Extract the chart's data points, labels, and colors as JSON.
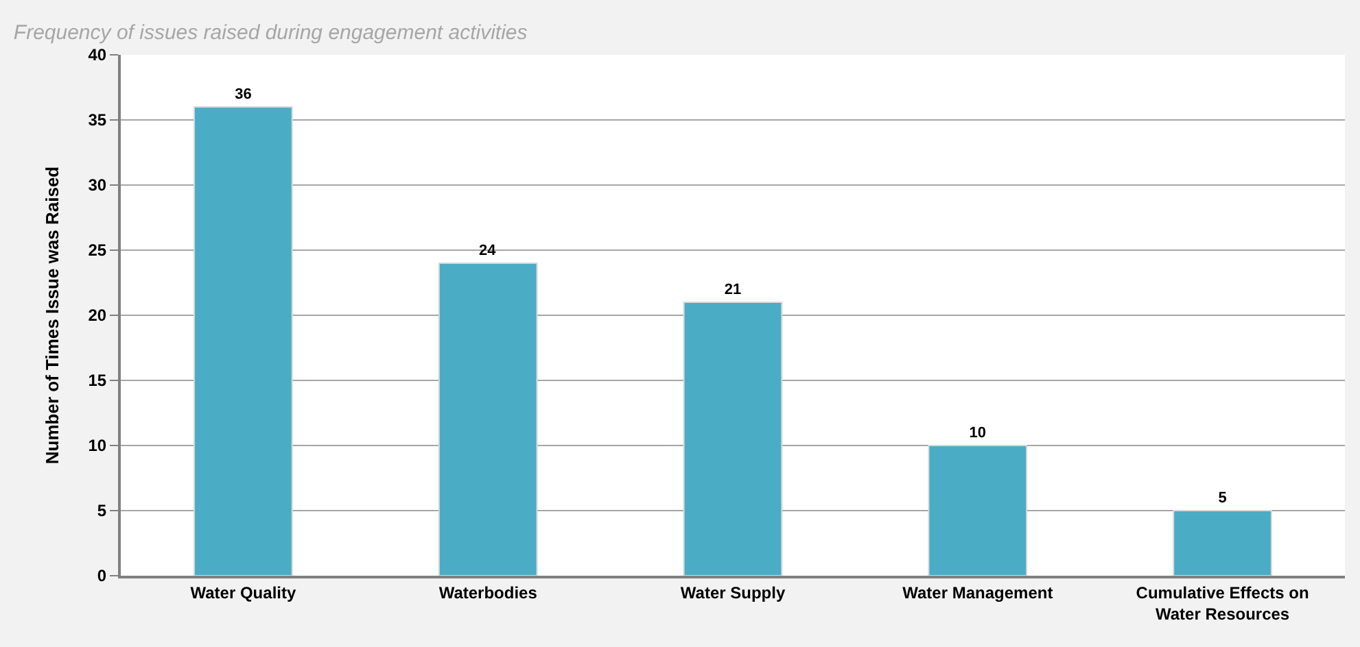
{
  "chart_data": {
    "type": "bar",
    "title": "Frequency of issues raised during engagement activities",
    "ylabel": "Number of Times Issue was Raised",
    "categories": [
      "Water Quality",
      "Waterbodies",
      "Water Supply",
      "Water Management",
      "Cumulative Effects on Water Resources"
    ],
    "values": [
      36,
      24,
      21,
      10,
      5
    ],
    "color": "#4bacc6",
    "ylim": [
      0,
      40
    ],
    "yticks": [
      0,
      5,
      10,
      15,
      20,
      25,
      30,
      35,
      40
    ],
    "grid": "y",
    "data_labels": true
  }
}
